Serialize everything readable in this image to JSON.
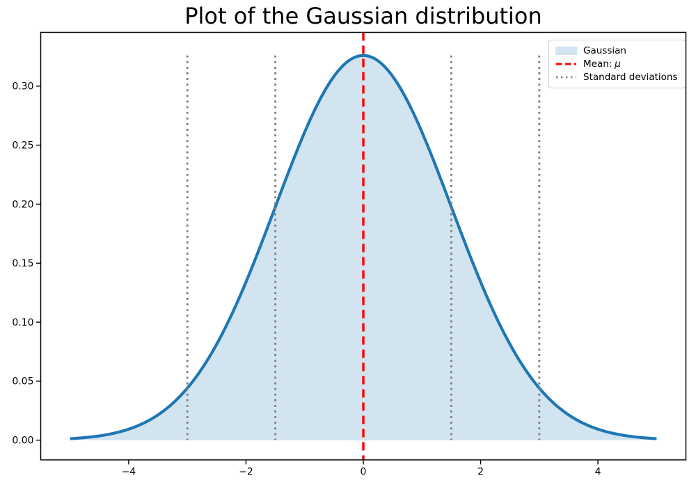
{
  "chart_data": {
    "type": "line",
    "title": "Plot of the Gaussian distribution",
    "xlabel": "",
    "ylabel": "",
    "grid": false,
    "xlim": [
      -5.5,
      5.5
    ],
    "ylim": [
      -0.0167,
      0.3456
    ],
    "x_ticks": [
      -4,
      -2,
      0,
      2,
      4
    ],
    "x_tick_labels": [
      "−4",
      "−2",
      "0",
      "2",
      "4"
    ],
    "y_ticks": [
      0.0,
      0.05,
      0.1,
      0.15,
      0.2,
      0.25,
      0.3
    ],
    "y_tick_labels": [
      "0.00",
      "0.05",
      "0.10",
      "0.15",
      "0.20",
      "0.25",
      "0.30"
    ],
    "series": [
      {
        "name": "Gaussian",
        "kind": "filled_curve",
        "formula": "peak * exp(-(x-mean)^2 / (2*sigma^2))",
        "mean": 0,
        "sigma": 1.5,
        "peak": 0.326,
        "x_min": -5,
        "x_max": 5,
        "line_color": "#1f77b4",
        "fill_color": "#1f77b4",
        "fill_opacity": 0.2,
        "sample_points": {
          "x": [
            -5.0,
            -4.5,
            -4.0,
            -3.5,
            -3.0,
            -2.5,
            -2.0,
            -1.5,
            -1.0,
            -0.5,
            0.0,
            0.5,
            1.0,
            1.5,
            2.0,
            2.5,
            3.0,
            3.5,
            4.0,
            4.5,
            5.0
          ],
          "y": [
            0.001,
            0.004,
            0.009,
            0.021,
            0.044,
            0.081,
            0.134,
            0.198,
            0.261,
            0.308,
            0.326,
            0.308,
            0.261,
            0.198,
            0.134,
            0.081,
            0.044,
            0.021,
            0.009,
            0.004,
            0.001
          ]
        }
      }
    ],
    "mean_line": {
      "x": 0,
      "color": "#ff0000",
      "style": "dashed"
    },
    "std_lines": {
      "positions": [
        -3,
        -1.5,
        1.5,
        3
      ],
      "y_min": 0,
      "y_max": 0.326,
      "color": "#808080",
      "style": "dotted"
    },
    "legend_position": "upper right",
    "legend": [
      {
        "label": "Gaussian",
        "swatch": "patch",
        "color": "#1f77b4",
        "opacity": 0.2
      },
      {
        "label_prefix": "Mean:",
        "label_symbol": "μ",
        "swatch": "dashed-line",
        "color": "#ff0000"
      },
      {
        "label": "Standard deviations",
        "swatch": "dotted-line",
        "color": "#808080"
      }
    ],
    "axis_color": "#000000",
    "background_color": "#ffffff"
  }
}
